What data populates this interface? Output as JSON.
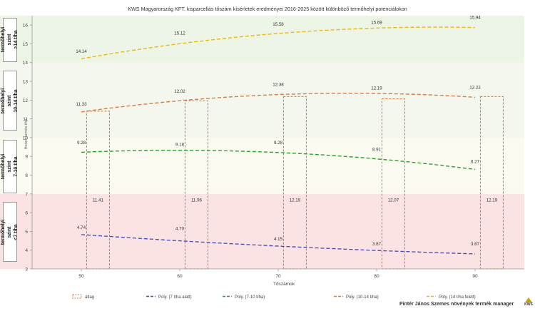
{
  "chart_data": {
    "type": "line",
    "title": "KWS Magyarország KFT. kisparcellás tőszám kísérletek eredményei 2016-2025 között különböző termőhelyi potenciálokon",
    "xlabel": "Tőszámok",
    "ylabel": "Hozam termés t/ha",
    "xlim": [
      45,
      95
    ],
    "ylim": [
      3,
      16.5
    ],
    "x_ticks": [
      50,
      60,
      70,
      80,
      90
    ],
    "y_ticks": [
      3,
      4,
      5,
      6,
      7,
      8,
      9,
      10,
      11,
      12,
      13,
      14,
      15,
      16
    ],
    "grid": false,
    "legend_position": "bottom",
    "x": [
      50,
      60,
      70,
      80,
      90
    ],
    "bars": {
      "name": "átlag",
      "values": [
        11.41,
        11.96,
        12.19,
        12.07,
        12.19
      ],
      "labels": [
        "11.41",
        "11.96",
        "12.19",
        "12.07",
        "12.19"
      ],
      "color": "#e07b39"
    },
    "series": [
      {
        "name": "Poly. (7 t/ha alatt)",
        "color": "#4a4fc4",
        "values": [
          4.74,
          4.7,
          4.15,
          3.87,
          3.87
        ],
        "labels": [
          "4.74",
          "4.70",
          "4.15",
          "3.87",
          "3.87"
        ]
      },
      {
        "name": "Poly. (7-10 t/ha)",
        "color": "#2ca02c",
        "values": [
          9.28,
          9.18,
          9.28,
          8.91,
          8.27
        ],
        "labels": [
          "9.28",
          "9.18",
          "9.28",
          "8.91",
          "8.27"
        ]
      },
      {
        "name": "Poly. (10-14 t/ha)",
        "color": "#e07b39",
        "values": [
          11.33,
          12.02,
          12.38,
          12.19,
          12.22
        ],
        "labels": [
          "11.33",
          "12.02",
          "12.38",
          "12.19",
          "12.22"
        ]
      },
      {
        "name": "Poly. (14 t/ha felett)",
        "color": "#f2b705",
        "values": [
          14.14,
          15.12,
          15.58,
          15.69,
          15.94
        ],
        "labels": [
          "14.14",
          "15.12",
          "15.58",
          "15.69",
          "15.94"
        ]
      }
    ],
    "bands": [
      {
        "label": "termőhelyi szint\n>14 t/ha",
        "from": 14,
        "to": 16.5,
        "color": "#edf5e6"
      },
      {
        "label": "termőhelyi szint\n10-14 t/ha",
        "from": 10,
        "to": 14,
        "color": "#f3f7ee"
      },
      {
        "label": "termőhelyi szint\n7-10 t/ha",
        "from": 7,
        "to": 10,
        "color": "#fbfbf2"
      },
      {
        "label": "termőhelyi szint\n<7 t/ha",
        "from": 3,
        "to": 7,
        "color": "#fbe3e3"
      }
    ]
  },
  "footer": {
    "credit": "Pintér János Szemes növények termék manager",
    "logo_text": "KWS"
  }
}
